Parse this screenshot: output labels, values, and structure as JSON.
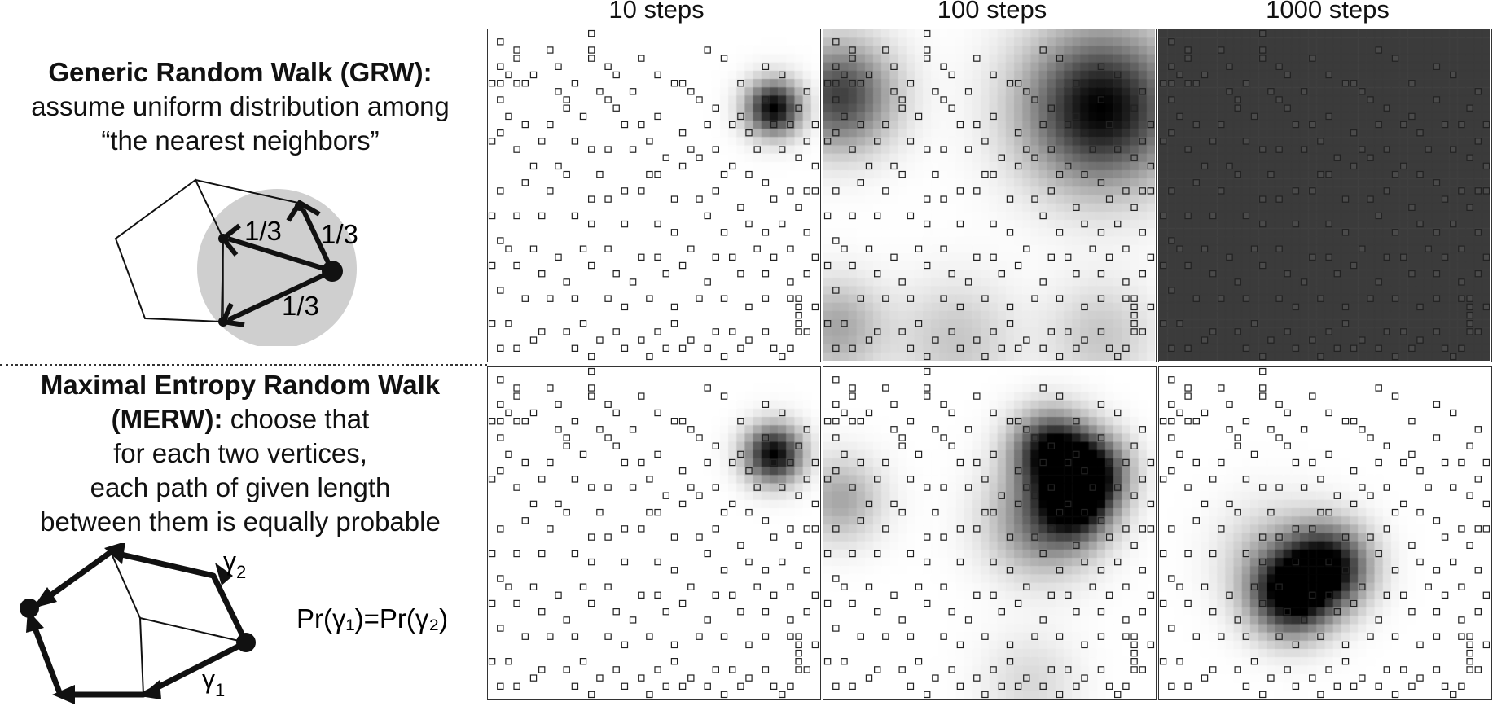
{
  "columns": [
    {
      "label": "10 steps"
    },
    {
      "label": "100 steps"
    },
    {
      "label": "1000 steps"
    }
  ],
  "grw": {
    "title": "Generic Random Walk (GRW):",
    "line1": "assume uniform distribution among",
    "line2": "“the nearest neighbors”",
    "prob_labels": [
      "1/3",
      "1/3",
      "1/3"
    ]
  },
  "merw": {
    "title_part1": "Maximal Entropy Random Walk",
    "title_part2": "(MERW):",
    "line1_rest": " choose that",
    "line2": "for each two vertices,",
    "line3": "each path of given length",
    "line4": "between them is equally probable",
    "gamma1_label": "γ",
    "gamma1_sub": "1",
    "gamma2_label": "γ",
    "gamma2_sub": "2",
    "equation": "Pr(γ₁)=Pr(γ₂)"
  },
  "colors": {
    "density": "#000000",
    "obstacle_stroke": "#222222",
    "grw_circle": "#cfcfcf",
    "uniform_fill": "#3b3b3b"
  },
  "grid": {
    "cells": 40,
    "obstacles": [
      [
        1,
        1
      ],
      [
        1,
        4
      ],
      [
        1,
        8
      ],
      [
        3,
        2
      ],
      [
        7,
        2
      ],
      [
        12,
        0
      ],
      [
        12,
        2
      ],
      [
        3,
        3
      ],
      [
        12,
        3
      ],
      [
        8,
        4
      ],
      [
        2,
        5
      ],
      [
        5,
        5
      ],
      [
        14,
        4
      ],
      [
        15,
        5
      ],
      [
        18,
        3
      ],
      [
        20,
        5
      ],
      [
        26,
        2
      ],
      [
        28,
        3
      ],
      [
        30,
        6
      ],
      [
        33,
        4
      ],
      [
        35,
        5
      ],
      [
        38,
        7
      ],
      [
        0,
        6
      ],
      [
        1,
        6
      ],
      [
        3,
        6
      ],
      [
        4,
        6
      ],
      [
        8,
        7
      ],
      [
        10,
        6
      ],
      [
        9,
        8
      ],
      [
        13,
        7
      ],
      [
        14,
        8
      ],
      [
        17,
        7
      ],
      [
        22,
        6
      ],
      [
        23,
        6
      ],
      [
        24,
        7
      ],
      [
        25,
        8
      ],
      [
        27,
        9
      ],
      [
        30,
        10
      ],
      [
        33,
        8
      ],
      [
        37,
        9
      ],
      [
        39,
        11
      ],
      [
        2,
        10
      ],
      [
        4,
        11
      ],
      [
        7,
        11
      ],
      [
        9,
        9
      ],
      [
        11,
        10
      ],
      [
        15,
        9
      ],
      [
        16,
        11
      ],
      [
        18,
        11
      ],
      [
        20,
        10
      ],
      [
        23,
        12
      ],
      [
        26,
        11
      ],
      [
        29,
        11
      ],
      [
        31,
        12
      ],
      [
        34,
        11
      ],
      [
        36,
        11
      ],
      [
        38,
        13
      ],
      [
        1,
        12
      ],
      [
        0,
        13
      ],
      [
        3,
        14
      ],
      [
        6,
        13
      ],
      [
        10,
        13
      ],
      [
        12,
        14
      ],
      [
        14,
        14
      ],
      [
        17,
        14
      ],
      [
        19,
        13
      ],
      [
        21,
        15
      ],
      [
        24,
        14
      ],
      [
        25,
        15
      ],
      [
        27,
        14
      ],
      [
        29,
        16
      ],
      [
        32,
        14
      ],
      [
        35,
        14
      ],
      [
        37,
        15
      ],
      [
        39,
        16
      ],
      [
        5,
        16
      ],
      [
        8,
        16
      ],
      [
        9,
        17
      ],
      [
        13,
        17
      ],
      [
        19,
        17
      ],
      [
        20,
        17
      ],
      [
        23,
        16
      ],
      [
        28,
        17
      ],
      [
        31,
        17
      ],
      [
        33,
        18
      ],
      [
        36,
        19
      ],
      [
        38,
        19
      ],
      [
        1,
        19
      ],
      [
        4,
        18
      ],
      [
        7,
        19
      ],
      [
        12,
        20
      ],
      [
        14,
        20
      ],
      [
        16,
        19
      ],
      [
        18,
        19
      ],
      [
        22,
        20
      ],
      [
        25,
        20
      ],
      [
        27,
        19
      ],
      [
        30,
        21
      ],
      [
        34,
        20
      ],
      [
        37,
        21
      ],
      [
        39,
        19
      ],
      [
        0,
        22
      ],
      [
        3,
        22
      ],
      [
        6,
        22
      ],
      [
        10,
        22
      ],
      [
        12,
        23
      ],
      [
        16,
        23
      ],
      [
        20,
        23
      ],
      [
        22,
        24
      ],
      [
        26,
        22
      ],
      [
        28,
        24
      ],
      [
        31,
        23
      ],
      [
        33,
        24
      ],
      [
        35,
        23
      ],
      [
        38,
        24
      ],
      [
        1,
        25
      ],
      [
        2,
        26
      ],
      [
        5,
        26
      ],
      [
        8,
        27
      ],
      [
        11,
        26
      ],
      [
        14,
        26
      ],
      [
        18,
        27
      ],
      [
        20,
        27
      ],
      [
        24,
        26
      ],
      [
        27,
        27
      ],
      [
        29,
        27
      ],
      [
        32,
        26
      ],
      [
        34,
        27
      ],
      [
        36,
        26
      ],
      [
        39,
        27
      ],
      [
        0,
        28
      ],
      [
        3,
        28
      ],
      [
        6,
        29
      ],
      [
        9,
        30
      ],
      [
        12,
        28
      ],
      [
        15,
        29
      ],
      [
        17,
        30
      ],
      [
        21,
        29
      ],
      [
        23,
        28
      ],
      [
        26,
        30
      ],
      [
        30,
        29
      ],
      [
        33,
        29
      ],
      [
        36,
        30
      ],
      [
        38,
        29
      ],
      [
        1,
        31
      ],
      [
        4,
        32
      ],
      [
        7,
        32
      ],
      [
        10,
        32
      ],
      [
        14,
        32
      ],
      [
        16,
        33
      ],
      [
        19,
        32
      ],
      [
        22,
        33
      ],
      [
        25,
        32
      ],
      [
        28,
        32
      ],
      [
        31,
        33
      ],
      [
        33,
        32
      ],
      [
        36,
        32
      ],
      [
        37,
        32
      ],
      [
        37,
        33
      ],
      [
        37,
        34
      ],
      [
        37,
        35
      ],
      [
        37,
        36
      ],
      [
        39,
        33
      ],
      [
        0,
        35
      ],
      [
        2,
        35
      ],
      [
        6,
        36
      ],
      [
        9,
        36
      ],
      [
        11,
        35
      ],
      [
        13,
        37
      ],
      [
        15,
        36
      ],
      [
        18,
        37
      ],
      [
        20,
        36
      ],
      [
        22,
        35
      ],
      [
        24,
        37
      ],
      [
        27,
        36
      ],
      [
        29,
        36
      ],
      [
        31,
        37
      ],
      [
        34,
        38
      ],
      [
        36,
        38
      ],
      [
        38,
        36
      ],
      [
        1,
        38
      ],
      [
        3,
        38
      ],
      [
        5,
        37
      ],
      [
        10,
        38
      ],
      [
        12,
        39
      ],
      [
        16,
        38
      ],
      [
        19,
        39
      ],
      [
        21,
        38
      ],
      [
        23,
        38
      ],
      [
        26,
        38
      ],
      [
        28,
        39
      ],
      [
        30,
        38
      ],
      [
        33,
        36
      ],
      [
        35,
        39
      ]
    ]
  },
  "density_blobs": {
    "grw": [
      [
        {
          "x": 34.5,
          "y": 9.5,
          "s": 2.3,
          "a": 1.0
        }
      ],
      [
        {
          "x": 33.5,
          "y": 9.5,
          "s": 6.5,
          "a": 1.0
        },
        {
          "x": 2.0,
          "y": 8.0,
          "s": 4.5,
          "a": 0.75
        },
        {
          "x": 1.5,
          "y": 36.0,
          "s": 4.0,
          "a": 0.35
        },
        {
          "x": 16.0,
          "y": 37.5,
          "s": 5.0,
          "a": 0.22
        },
        {
          "x": 33.5,
          "y": 37.0,
          "s": 4.5,
          "a": 0.22
        }
      ],
      []
    ],
    "merw": [
      [
        {
          "x": 34.5,
          "y": 10.5,
          "s": 2.4,
          "a": 1.0
        }
      ],
      [
        {
          "x": 27.5,
          "y": 10.0,
          "s": 3.2,
          "a": 0.95
        },
        {
          "x": 32.5,
          "y": 12.5,
          "s": 3.0,
          "a": 0.85
        },
        {
          "x": 30.5,
          "y": 16.5,
          "s": 3.0,
          "a": 0.8
        },
        {
          "x": 26.5,
          "y": 18.5,
          "s": 4.5,
          "a": 0.55
        },
        {
          "x": 2.0,
          "y": 16.0,
          "s": 3.5,
          "a": 0.35
        },
        {
          "x": 25.0,
          "y": 38.0,
          "s": 4.0,
          "a": 0.15
        }
      ],
      [
        {
          "x": 16.0,
          "y": 27.5,
          "s": 3.4,
          "a": 1.0
        },
        {
          "x": 20.5,
          "y": 24.0,
          "s": 3.4,
          "a": 0.95
        },
        {
          "x": 14.0,
          "y": 23.0,
          "s": 4.5,
          "a": 0.25
        }
      ]
    ],
    "grw_uniform_level": 0.77
  }
}
